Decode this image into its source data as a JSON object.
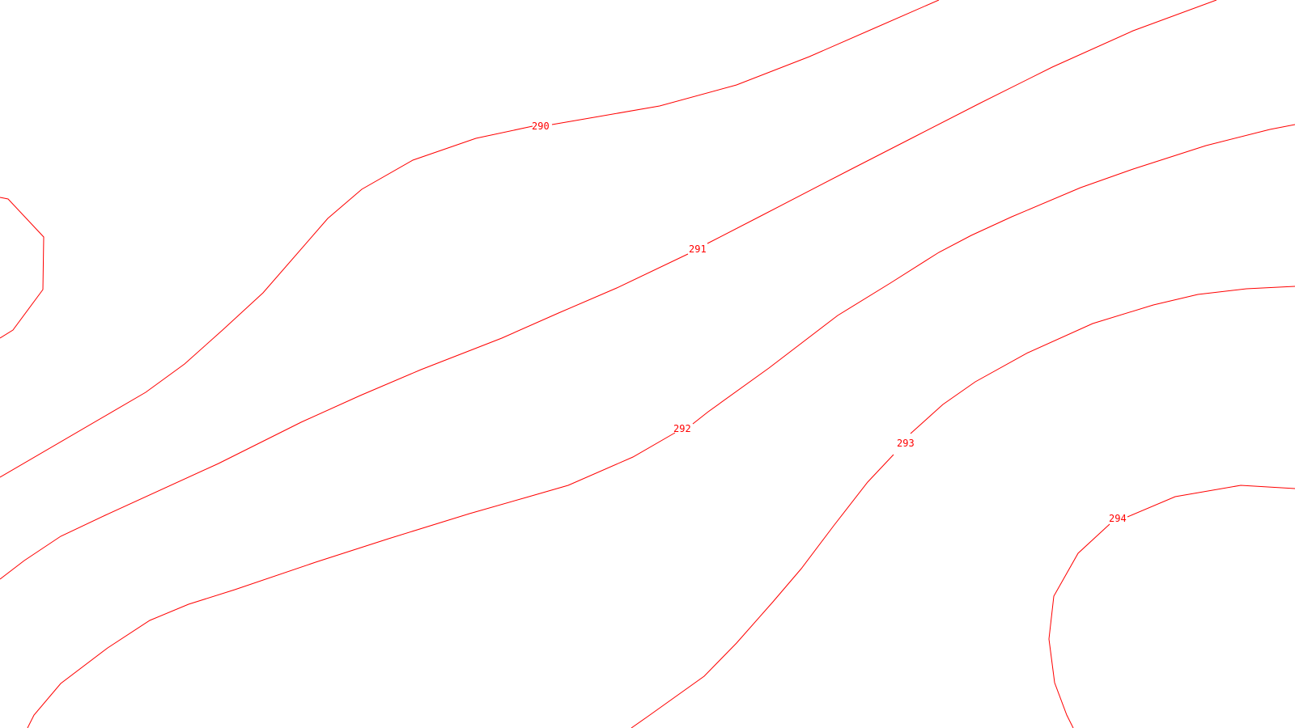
{
  "map": {
    "line_color": "#ff0000",
    "background": "#ffffff",
    "contours": [
      {
        "elevation": 290,
        "label": "290"
      },
      {
        "elevation": 291,
        "label": "291"
      },
      {
        "elevation": 292,
        "label": "292"
      },
      {
        "elevation": 293,
        "label": "293"
      },
      {
        "elevation": 294,
        "label": "294"
      }
    ]
  }
}
